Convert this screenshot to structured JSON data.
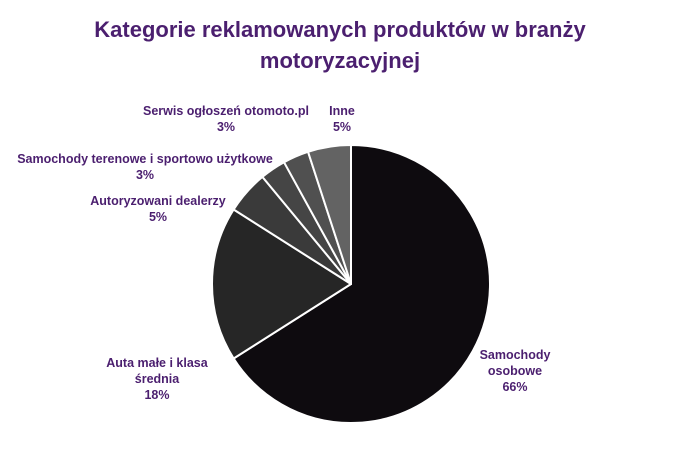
{
  "chart_data": {
    "type": "pie",
    "title_lines": [
      "Kategorie reklamowanych produktów w branży",
      "motoryzacyjnej"
    ],
    "slices": [
      {
        "label_lines": [
          "Samochody",
          "osobowe"
        ],
        "value": 66,
        "value_label": "66%",
        "color": "#0e0b0f"
      },
      {
        "label_lines": [
          "Auta małe i klasa",
          "średnia"
        ],
        "value": 18,
        "value_label": "18%",
        "color": "#262626"
      },
      {
        "label_lines": [
          "Autoryzowani dealerzy"
        ],
        "value": 5,
        "value_label": "5%",
        "color": "#3a3a3a"
      },
      {
        "label_lines": [
          "Samochody terenowe i sportowo użytkowe"
        ],
        "value": 3,
        "value_label": "3%",
        "color": "#454545"
      },
      {
        "label_lines": [
          "Serwis ogłoszeń otomoto.pl"
        ],
        "value": 3,
        "value_label": "3%",
        "color": "#505050"
      },
      {
        "label_lines": [
          "Inne"
        ],
        "value": 5,
        "value_label": "5%",
        "color": "#636363"
      }
    ],
    "start_angle": "12 o'clock",
    "direction": "clockwise",
    "legend": "none"
  }
}
